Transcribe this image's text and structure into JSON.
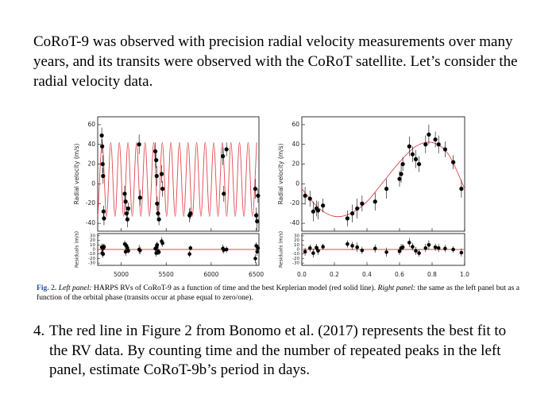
{
  "paragraphs": [
    "CoRoT-9 was observed with precision radial velocity measurements over many years, and its transits were observed with the CoRoT satellite. Let’s consider the radial velocity data."
  ],
  "caption": {
    "label": "Fig. 2.",
    "left_heading": "Left panel:",
    "left_text": "HARPS RVs of CoRoT-9 as a function of time and the best Keplerian model (red solid line).",
    "right_heading": "Right panel:",
    "right_text": "the same as the left panel but as a function of the orbital phase (transits occur at phase equal to zero/one)."
  },
  "question": {
    "number": "4.",
    "text": "The red line in Figure 2 from Bonomo et al. (2017) represents the best fit to the RV data. By counting time and the number of repeated peaks in the left panel, estimate CoRoT-9b’s period in days."
  },
  "chart_data": [
    {
      "type": "scatter",
      "ylabel": "Radial velocity (m/s)",
      "residual_ylabel": "Residuals (m/s)",
      "xlim": [
        4740,
        6530
      ],
      "xticks": [
        5000,
        5500,
        6000,
        6500
      ],
      "ylim": [
        -48,
        68
      ],
      "yticks": [
        -40,
        -20,
        0,
        20,
        40,
        60
      ],
      "residual_ylim": [
        -35,
        35
      ],
      "residual_yticks": [
        30,
        20,
        10,
        0,
        -10,
        -20,
        -30
      ],
      "color": "#000000",
      "x": [
        4785,
        4790,
        4795,
        4800,
        4805,
        4810,
        5040,
        5050,
        5060,
        5070,
        5080,
        5200,
        5210,
        5380,
        5390,
        5395,
        5400,
        5410,
        5420,
        5450,
        5460,
        5760,
        5770,
        6130,
        6140,
        6170,
        6490,
        6500,
        6510,
        6520
      ],
      "values": [
        49,
        38,
        20,
        8,
        -28,
        -35,
        -10,
        -18,
        -30,
        -36,
        -25,
        40,
        -14,
        33,
        24,
        8,
        -20,
        -30,
        -36,
        10,
        -5,
        -32,
        -30,
        28,
        -10,
        35,
        -5,
        -32,
        -38,
        -12
      ],
      "errors": [
        8,
        7,
        9,
        8,
        6,
        7,
        8,
        9,
        7,
        8,
        6,
        10,
        8,
        9,
        8,
        10,
        7,
        8,
        6,
        9,
        8,
        7,
        6,
        9,
        8,
        7,
        10,
        8,
        9,
        7
      ],
      "residuals": {
        "values": [
          5,
          -8,
          3,
          -10,
          4,
          6,
          12,
          -5,
          8,
          3,
          -3,
          0,
          -2,
          2,
          -8,
          5,
          10,
          -4,
          -6,
          18,
          14,
          -10,
          3,
          2,
          -1,
          0,
          -20,
          8,
          -5,
          3
        ],
        "errors": [
          8,
          7,
          9,
          8,
          6,
          7,
          8,
          9,
          7,
          8,
          6,
          10,
          8,
          9,
          8,
          10,
          7,
          8,
          6,
          9,
          8,
          7,
          6,
          9,
          8,
          7,
          10,
          8,
          9,
          7
        ]
      },
      "model": {
        "color": "#e0474c",
        "x": [
          4742,
          4790,
          4838,
          4885,
          4933,
          4980,
          5028,
          5076,
          5124,
          5171,
          5219,
          5266,
          5314,
          5362,
          5410,
          5457,
          5505,
          5552,
          5600,
          5647,
          5695,
          5743,
          5791,
          5838,
          5886,
          5933,
          5981,
          6028,
          6076,
          6124,
          6172,
          6219,
          6267,
          6314,
          6362,
          6410,
          6458,
          6505
        ],
        "values": [
          -33,
          42,
          -33,
          42,
          -33,
          42,
          -33,
          42,
          -33,
          42,
          -33,
          42,
          -33,
          42,
          -33,
          42,
          -33,
          42,
          -33,
          42,
          -33,
          42,
          -33,
          42,
          -33,
          42,
          -33,
          42,
          -33,
          42,
          -33,
          42,
          -33,
          42,
          -33,
          42,
          -33,
          42
        ]
      }
    },
    {
      "type": "scatter",
      "ylabel": "Radial velocity (m/s)",
      "residual_ylabel": "Residuals (m/s)",
      "xlim": [
        0,
        1
      ],
      "xticks": [
        {
          "value": 0,
          "label": "0.0"
        },
        0.2,
        0.4,
        0.6,
        0.8,
        {
          "value": 1,
          "label": "1.0"
        }
      ],
      "ylim": [
        -48,
        68
      ],
      "yticks": [
        -40,
        -20,
        0,
        20,
        40,
        60
      ],
      "residual_ylim": [
        -35,
        35
      ],
      "residual_yticks": [
        30,
        20,
        10,
        0,
        -10,
        -20,
        -30
      ],
      "color": "#000000",
      "x": [
        0.02,
        0.05,
        0.07,
        0.09,
        0.1,
        0.13,
        0.28,
        0.31,
        0.34,
        0.37,
        0.45,
        0.52,
        0.6,
        0.61,
        0.62,
        0.66,
        0.68,
        0.7,
        0.72,
        0.76,
        0.78,
        0.82,
        0.84,
        0.88,
        0.93,
        0.98
      ],
      "values": [
        -12,
        -15,
        -28,
        -25,
        -27,
        -22,
        -35,
        -30,
        -25,
        -20,
        -18,
        -5,
        5,
        10,
        20,
        38,
        30,
        25,
        20,
        40,
        50,
        45,
        40,
        35,
        22,
        -5
      ],
      "errors": [
        9,
        8,
        10,
        8,
        9,
        7,
        8,
        9,
        10,
        8,
        9,
        10,
        8,
        9,
        7,
        10,
        8,
        9,
        8,
        9,
        10,
        8,
        9,
        8,
        7,
        9
      ],
      "residuals": {
        "values": [
          -5,
          3,
          -8,
          4,
          -3,
          6,
          12,
          8,
          5,
          -2,
          2,
          -6,
          -4,
          3,
          5,
          15,
          6,
          -3,
          -8,
          3,
          10,
          5,
          3,
          2,
          0,
          -7
        ],
        "errors": [
          9,
          8,
          10,
          8,
          9,
          7,
          8,
          9,
          10,
          8,
          9,
          10,
          8,
          9,
          7,
          10,
          8,
          9,
          8,
          9,
          10,
          8,
          9,
          8,
          7,
          9
        ]
      },
      "model": {
        "color": "#e0474c",
        "x": [
          0,
          0.1,
          0.2,
          0.3,
          0.4,
          0.5,
          0.6,
          0.7,
          0.8,
          0.9,
          1
        ],
        "values": [
          -5,
          -24,
          -33,
          -30,
          -18,
          2,
          22,
          38,
          42,
          30,
          -5
        ]
      }
    }
  ]
}
